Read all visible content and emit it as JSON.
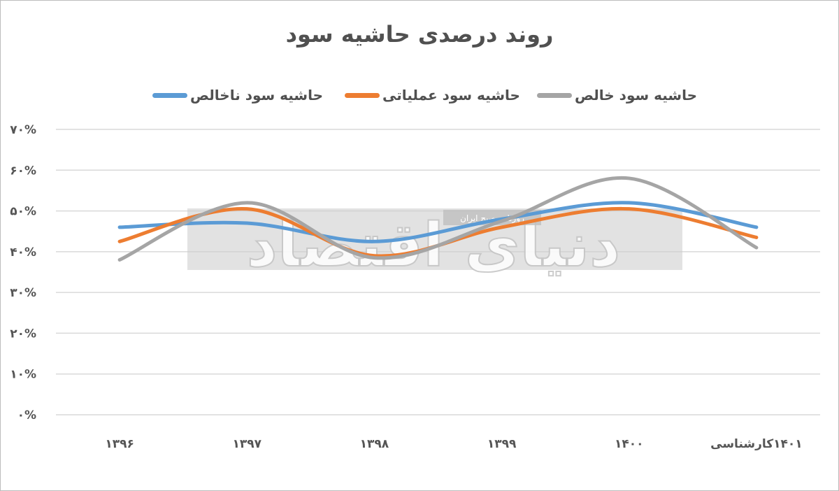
{
  "chart_data": {
    "type": "line",
    "title": "روند درصدی حاشیه سود",
    "categories": [
      "۱۳۹۶",
      "۱۳۹۷",
      "۱۳۹۸",
      "۱۳۹۹",
      "۱۴۰۰",
      "۱۴۰۱کارشناسی"
    ],
    "y_ticks": [
      "۰%",
      "۱۰%",
      "۲۰%",
      "۳۰%",
      "۴۰%",
      "۵۰%",
      "۶۰%",
      "۷۰%"
    ],
    "ylim": [
      0,
      70
    ],
    "grid": true,
    "legend_position": "top",
    "smooth": true,
    "series": [
      {
        "name": "حاشیه سود ناخالص",
        "color": "#5b9bd5",
        "values": [
          46,
          47,
          42.5,
          48,
          52,
          46
        ]
      },
      {
        "name": "حاشیه سود عملیاتی",
        "color": "#ed7d31",
        "values": [
          42.5,
          50.5,
          39,
          46,
          50.5,
          43.5
        ]
      },
      {
        "name": "حاشیه سود خالص",
        "color": "#a5a5a5",
        "values": [
          38,
          52,
          38.5,
          47.5,
          58,
          41
        ]
      }
    ]
  },
  "watermark": {
    "text": "دنیای اقتصاد",
    "caption": "روزنامه صبح ایران"
  }
}
